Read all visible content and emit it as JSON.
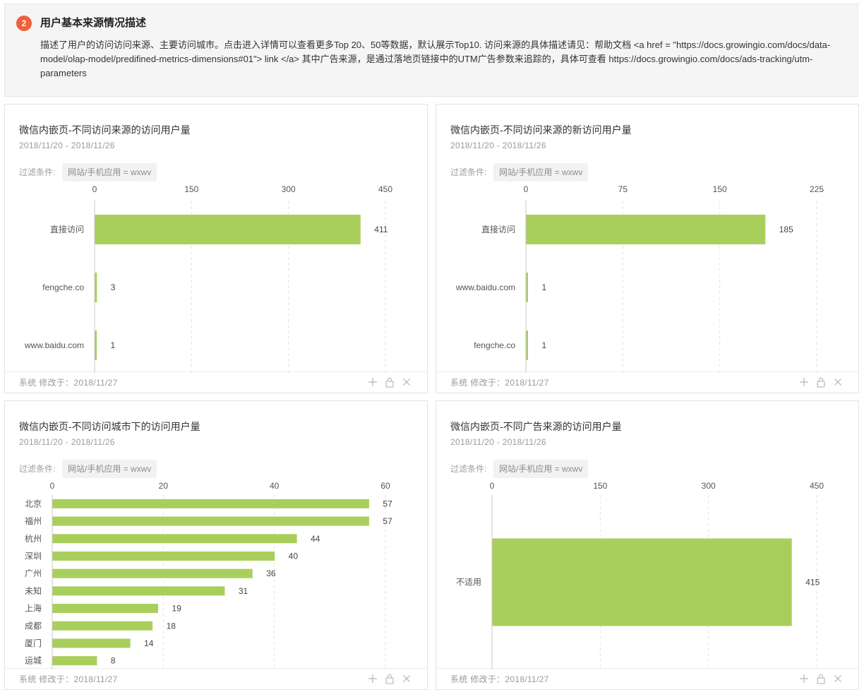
{
  "section": {
    "step": "2",
    "title": "用户基本来源情况描述",
    "description": "描述了用户的访问访问来源、主要访问城市。点击进入详情可以查看更多Top 20、50等数据，默认展示Top10. 访问来源的具体描述请见：帮助文档 <a href = \"https://docs.growingio.com/docs/data-model/olap-model/predifined-metrics-dimensions#01\"> link </a> 其中广告来源，是通过落地页链接中的UTM广告参数来追踪的，具体可查看 https://docs.growingio.com/docs/ads-tracking/utm-parameters"
  },
  "colors": {
    "bar": "#a8cf5c",
    "accent": "#f0603b",
    "grid": "#e3e3e3",
    "axis": "#c8c8c8"
  },
  "icons": [
    "plus-icon",
    "lock-icon",
    "close-icon"
  ],
  "cards": [
    {
      "title": "微信内嵌页-不同访问来源的访问用户量",
      "date_range": "2018/11/20 - 2018/11/26",
      "filter_label": "过滤条件:",
      "filter_value": "网站/手机应用 = wxwv",
      "footer": "系统  修改于：2018/11/27"
    },
    {
      "title": "微信内嵌页-不同访问来源的新访问用户量",
      "date_range": "2018/11/20 - 2018/11/26",
      "filter_label": "过滤条件:",
      "filter_value": "网站/手机应用 = wxwv",
      "footer": "系统  修改于：2018/11/27"
    },
    {
      "title": "微信内嵌页-不同访问城市下的访问用户量",
      "date_range": "2018/11/20 - 2018/11/26",
      "filter_label": "过滤条件:",
      "filter_value": "网站/手机应用 = wxwv",
      "footer": "系统  修改于：2018/11/27"
    },
    {
      "title": "微信内嵌页-不同广告来源的访问用户量",
      "date_range": "2018/11/20 - 2018/11/26",
      "filter_label": "过滤条件:",
      "filter_value": "网站/手机应用 = wxwv",
      "footer": "系统  修改于：2018/11/27"
    }
  ],
  "chart_data": [
    {
      "type": "bar",
      "orientation": "horizontal",
      "categories": [
        "直接访问",
        "fengche.co",
        "www.baidu.com"
      ],
      "values": [
        411,
        3,
        1
      ],
      "xticks": [
        0,
        150,
        300,
        450
      ],
      "xlim": [
        0,
        450
      ],
      "data_labels": true,
      "grid": true
    },
    {
      "type": "bar",
      "orientation": "horizontal",
      "categories": [
        "直接访问",
        "www.baidu.com",
        "fengche.co"
      ],
      "values": [
        185,
        1,
        1
      ],
      "xticks": [
        0,
        75,
        150,
        225
      ],
      "xlim": [
        0,
        225
      ],
      "data_labels": true,
      "grid": true
    },
    {
      "type": "bar",
      "orientation": "horizontal",
      "categories": [
        "北京",
        "福州",
        "杭州",
        "深圳",
        "广州",
        "未知",
        "上海",
        "成都",
        "厦门",
        "运城"
      ],
      "values": [
        57,
        57,
        44,
        40,
        36,
        31,
        19,
        18,
        14,
        8
      ],
      "xticks": [
        0,
        20,
        40,
        60
      ],
      "xlim": [
        0,
        60
      ],
      "data_labels": true,
      "grid": true
    },
    {
      "type": "bar",
      "orientation": "horizontal",
      "categories": [
        "不适用"
      ],
      "values": [
        415
      ],
      "xticks": [
        0,
        150,
        300,
        450
      ],
      "xlim": [
        0,
        450
      ],
      "data_labels": true,
      "grid": true
    }
  ]
}
